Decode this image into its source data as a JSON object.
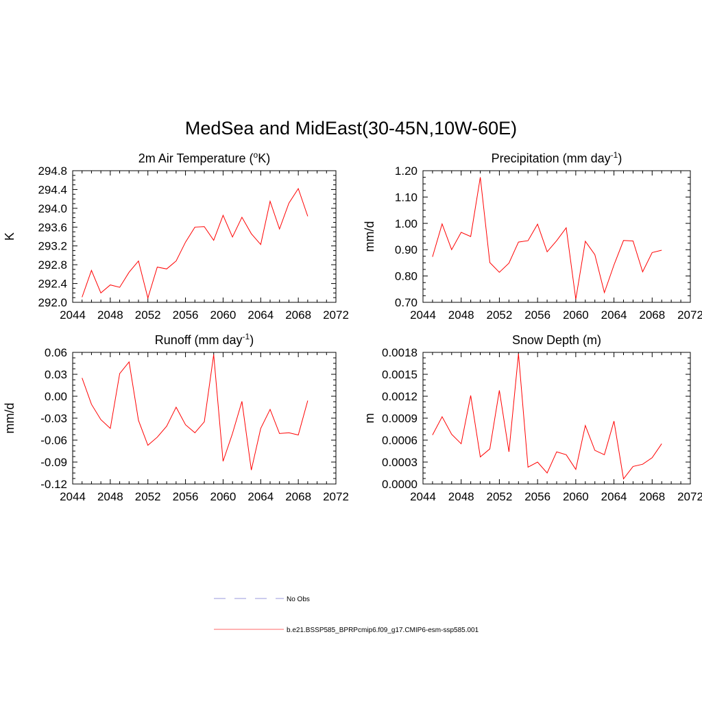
{
  "figure": {
    "title": "MedSea and MidEast(30-45N,10W-60E)"
  },
  "chart_data": [
    {
      "type": "line",
      "title": "2m Air Temperature (°K)",
      "title_base": "2m Air Temperature (",
      "title_sup": "o",
      "title_end": "K)",
      "ylabel": "K",
      "xlim": [
        2044,
        2072
      ],
      "xticks": [
        "2044",
        "2048",
        "2052",
        "2056",
        "2060",
        "2064",
        "2068",
        "2072"
      ],
      "ylim": [
        292.0,
        294.8
      ],
      "yticks": [
        "292.0",
        "292.4",
        "292.8",
        "293.2",
        "293.6",
        "294.0",
        "294.4",
        "294.8"
      ],
      "grid": false,
      "series": [
        {
          "name": "b.e21.BSSP585_BPRPcmip6.f09_g17.CMIP6-esm-ssp585.001",
          "color": "#ff0000",
          "x": [
            2045,
            2046,
            2047,
            2048,
            2049,
            2050,
            2051,
            2052,
            2053,
            2054,
            2055,
            2056,
            2057,
            2058,
            2059,
            2060,
            2061,
            2062,
            2063,
            2064,
            2065,
            2066,
            2067,
            2068,
            2069
          ],
          "y": [
            292.11,
            292.68,
            292.2,
            292.37,
            292.32,
            292.64,
            292.88,
            292.09,
            292.75,
            292.71,
            292.88,
            293.28,
            293.6,
            293.61,
            293.32,
            293.85,
            293.39,
            293.81,
            293.46,
            293.23,
            294.15,
            293.56,
            294.11,
            294.42,
            293.83
          ]
        }
      ]
    },
    {
      "type": "line",
      "title": "Precipitation (mm day-1)",
      "title_base": "Precipitation (mm day",
      "title_sup": "-1",
      "title_end": ")",
      "ylabel": "mm/d",
      "xlim": [
        2044,
        2072
      ],
      "xticks": [
        "2044",
        "2048",
        "2052",
        "2056",
        "2060",
        "2064",
        "2068",
        "2072"
      ],
      "ylim": [
        0.7,
        1.2
      ],
      "yticks": [
        "0.70",
        "0.80",
        "0.90",
        "1.00",
        "1.10",
        "1.20"
      ],
      "grid": false,
      "series": [
        {
          "name": "b.e21.BSSP585_BPRPcmip6.f09_g17.CMIP6-esm-ssp585.001",
          "color": "#ff0000",
          "x": [
            2045,
            2046,
            2047,
            2048,
            2049,
            2050,
            2051,
            2052,
            2053,
            2054,
            2055,
            2056,
            2057,
            2058,
            2059,
            2060,
            2061,
            2062,
            2063,
            2064,
            2065,
            2066,
            2067,
            2068,
            2069
          ],
          "y": [
            0.873,
            0.998,
            0.9,
            0.966,
            0.95,
            1.175,
            0.851,
            0.814,
            0.849,
            0.929,
            0.934,
            0.997,
            0.892,
            0.934,
            0.983,
            0.712,
            0.932,
            0.881,
            0.737,
            0.842,
            0.935,
            0.933,
            0.816,
            0.889,
            0.898
          ]
        }
      ]
    },
    {
      "type": "line",
      "title": "Runoff (mm day-1)",
      "title_base": "Runoff (mm day",
      "title_sup": "-1",
      "title_end": ")",
      "ylabel": "mm/d",
      "xlim": [
        2044,
        2072
      ],
      "xticks": [
        "2044",
        "2048",
        "2052",
        "2056",
        "2060",
        "2064",
        "2068",
        "2072"
      ],
      "ylim": [
        -0.12,
        0.06
      ],
      "yticks": [
        "-0.12",
        "-0.09",
        "-0.06",
        "-0.03",
        "0.00",
        "0.03",
        "0.06"
      ],
      "grid": false,
      "series": [
        {
          "name": "b.e21.BSSP585_BPRPcmip6.f09_g17.CMIP6-esm-ssp585.001",
          "color": "#ff0000",
          "x": [
            2045,
            2046,
            2047,
            2048,
            2049,
            2050,
            2051,
            2052,
            2053,
            2054,
            2055,
            2056,
            2057,
            2058,
            2059,
            2060,
            2061,
            2062,
            2063,
            2064,
            2065,
            2066,
            2067,
            2068,
            2069
          ],
          "y": [
            0.025,
            -0.011,
            -0.032,
            -0.044,
            0.031,
            0.047,
            -0.033,
            -0.067,
            -0.056,
            -0.041,
            -0.015,
            -0.039,
            -0.05,
            -0.035,
            0.057,
            -0.089,
            -0.051,
            -0.007,
            -0.101,
            -0.044,
            -0.018,
            -0.051,
            -0.05,
            -0.053,
            -0.006
          ]
        }
      ]
    },
    {
      "type": "line",
      "title": "Snow Depth (m)",
      "title_base": "Snow Depth (m)",
      "title_sup": "",
      "title_end": "",
      "ylabel": "m",
      "xlim": [
        2044,
        2072
      ],
      "xticks": [
        "2044",
        "2048",
        "2052",
        "2056",
        "2060",
        "2064",
        "2068",
        "2072"
      ],
      "ylim": [
        0.0,
        0.0018
      ],
      "yticks": [
        "0.0000",
        "0.0003",
        "0.0006",
        "0.0009",
        "0.0012",
        "0.0015",
        "0.0018"
      ],
      "grid": false,
      "series": [
        {
          "name": "b.e21.BSSP585_BPRPcmip6.f09_g17.CMIP6-esm-ssp585.001",
          "color": "#ff0000",
          "x": [
            2045,
            2046,
            2047,
            2048,
            2049,
            2050,
            2051,
            2052,
            2053,
            2054,
            2055,
            2056,
            2057,
            2058,
            2059,
            2060,
            2061,
            2062,
            2063,
            2064,
            2065,
            2066,
            2067,
            2068,
            2069
          ],
          "y": [
            0.00067,
            0.00092,
            0.00068,
            0.00055,
            0.00121,
            0.00037,
            0.00048,
            0.00128,
            0.00044,
            0.00178,
            0.00023,
            0.0003,
            0.00015,
            0.00044,
            0.0004,
            0.0002,
            0.0008,
            0.00046,
            0.0004,
            0.00086,
            7e-05,
            0.00024,
            0.00027,
            0.00036,
            0.00055
          ]
        }
      ]
    }
  ],
  "legend": {
    "placement": "bottom-center",
    "entries": [
      {
        "label": "No Obs",
        "color": "#9999dd",
        "style": "dashed"
      },
      {
        "label": "b.e21.BSSP585_BPRPcmip6.f09_g17.CMIP6-esm-ssp585.001",
        "color": "#ff6666",
        "style": "solid"
      }
    ]
  }
}
